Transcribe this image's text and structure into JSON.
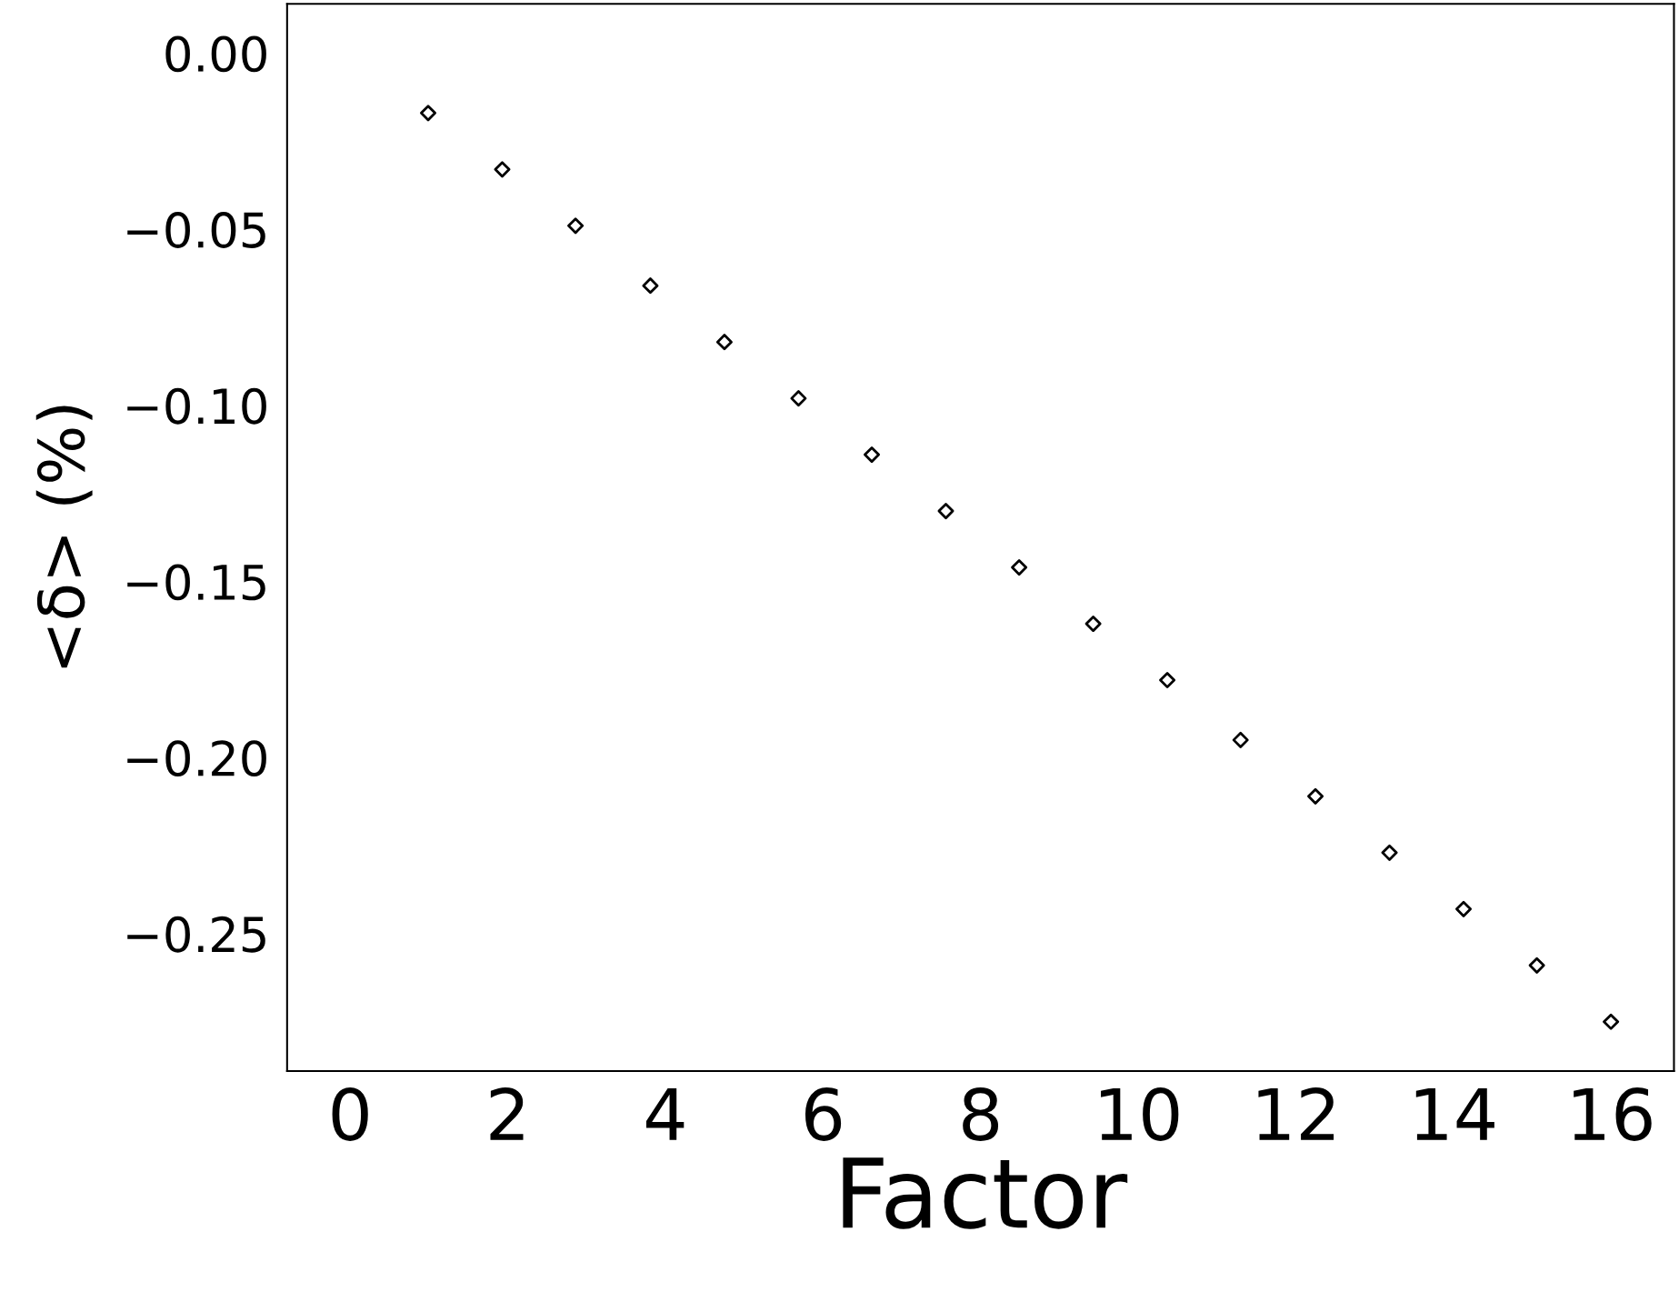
{
  "chart_data": {
    "type": "scatter",
    "xlabel": "Factor",
    "ylabel": "<δ> (%)",
    "marker": "diamond",
    "grid": false,
    "legend": false,
    "series": [
      {
        "color": "#000000",
        "x": [
          0.99,
          1.93,
          2.86,
          3.81,
          4.75,
          5.69,
          6.62,
          7.56,
          8.49,
          9.43,
          10.37,
          11.3,
          12.25,
          13.19,
          14.13,
          15.06,
          16.0
        ],
        "values": [
          -0.017,
          -0.033,
          -0.049,
          -0.066,
          -0.082,
          -0.098,
          -0.114,
          -0.13,
          -0.146,
          -0.162,
          -0.178,
          -0.195,
          -0.211,
          -0.227,
          -0.243,
          -0.259,
          -0.275
        ]
      }
    ],
    "xlim": [
      -0.8,
      16.8
    ],
    "xticks": [
      0,
      2,
      4,
      6,
      8,
      10,
      12,
      14,
      16
    ],
    "ylim": [
      -0.289,
      0.014
    ],
    "yticks": [
      {
        "value": 0,
        "label": "0.00"
      },
      {
        "value": -0.05,
        "label": "−0.05"
      },
      {
        "value": -0.1,
        "label": "−0.10"
      },
      {
        "value": -0.15,
        "label": "−0.15"
      },
      {
        "value": -0.2,
        "label": "−0.20"
      },
      {
        "value": -0.25,
        "label": "−0.25"
      }
    ]
  }
}
